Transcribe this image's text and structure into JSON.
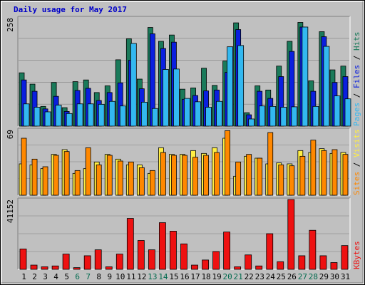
{
  "chart_data": {
    "type": "bar",
    "title": "Daily usage for May 2017",
    "categories": [
      "1",
      "2",
      "3",
      "4",
      "5",
      "6",
      "7",
      "8",
      "9",
      "10",
      "11",
      "12",
      "13",
      "14",
      "15",
      "16",
      "17",
      "18",
      "19",
      "20",
      "21",
      "22",
      "23",
      "24",
      "25",
      "26",
      "27",
      "28",
      "29",
      "30",
      "31"
    ],
    "weekend_days": [
      "6",
      "7",
      "13",
      "14",
      "20",
      "21",
      "27",
      "28"
    ],
    "panels": [
      {
        "id": "requests",
        "max_label": "258",
        "ymax": 258,
        "right_label": [
          "Pages",
          "Files",
          "Hits"
        ],
        "series": [
          {
            "name": "Hits",
            "color": "#1a7a5a",
            "values": [
              127,
              100,
              47,
              104,
              44,
              106,
              110,
              80,
              96,
              158,
              208,
              112,
              235,
              202,
              217,
              88,
              91,
              138,
              97,
              155,
              246,
              32,
              96,
              86,
              143,
              202,
              247,
              108,
              225,
              134,
              143
            ]
          },
          {
            "name": "Files",
            "color": "#0a1fdf",
            "values": [
              110,
              83,
              41,
              71,
              35,
              85,
              90,
              61,
              80,
              103,
              157,
              89,
              220,
              185,
              200,
              64,
              73,
              84,
              86,
              128,
              230,
              27,
              83,
              66,
              118,
              178,
              236,
              83,
              213,
              104,
              118
            ]
          },
          {
            "name": "Pages",
            "color": "#33b8f0",
            "values": [
              53,
              45,
              34,
              50,
              30,
              53,
              53,
              52,
              59,
              48,
              197,
              57,
              42,
              135,
              136,
              66,
              58,
              45,
              59,
              189,
              192,
              17,
              48,
              47,
              45,
              46,
              236,
              47,
              190,
              72,
              65
            ]
          }
        ]
      },
      {
        "id": "visitors",
        "max_label": "69",
        "ymax": 69,
        "right_label": [
          "Sites",
          "Visits"
        ],
        "series": [
          {
            "name": "Visits",
            "color": "#ffee44",
            "values": [
              33,
              32,
              28,
              43,
              48,
              23,
              28,
              35,
              43,
              38,
              32,
              32,
              23,
              50,
              43,
              43,
              47,
              44,
              50,
              60,
              20,
              41,
              39,
              33,
              34,
              33,
              47,
              45,
              49,
              44,
              45
            ]
          },
          {
            "name": "Sites",
            "color": "#ff8800",
            "values": [
              60,
              38,
              30,
              42,
              46,
              26,
              50,
              32,
              42,
              36,
              35,
              29,
              26,
              45,
              42,
              42,
              40,
              42,
              45,
              68,
              35,
              43,
              39,
              66,
              32,
              31,
              41,
              58,
              47,
              48,
              43
            ]
          }
        ]
      },
      {
        "id": "kbytes",
        "max_label": "41152",
        "ymax": 41152,
        "right_label": [
          "KBytes"
        ],
        "series": [
          {
            "name": "KBytes",
            "color": "#ee1111",
            "values": [
              12000,
              2500,
              1500,
              2000,
              9000,
              1000,
              8000,
              11500,
              1500,
              9000,
              30000,
              17000,
              11500,
              27500,
              22500,
              15000,
              2500,
              5500,
              10500,
              22000,
              1500,
              8500,
              2000,
              21000,
              4500,
              41152,
              8000,
              23000,
              8000,
              4000,
              14000
            ]
          }
        ]
      }
    ]
  }
}
